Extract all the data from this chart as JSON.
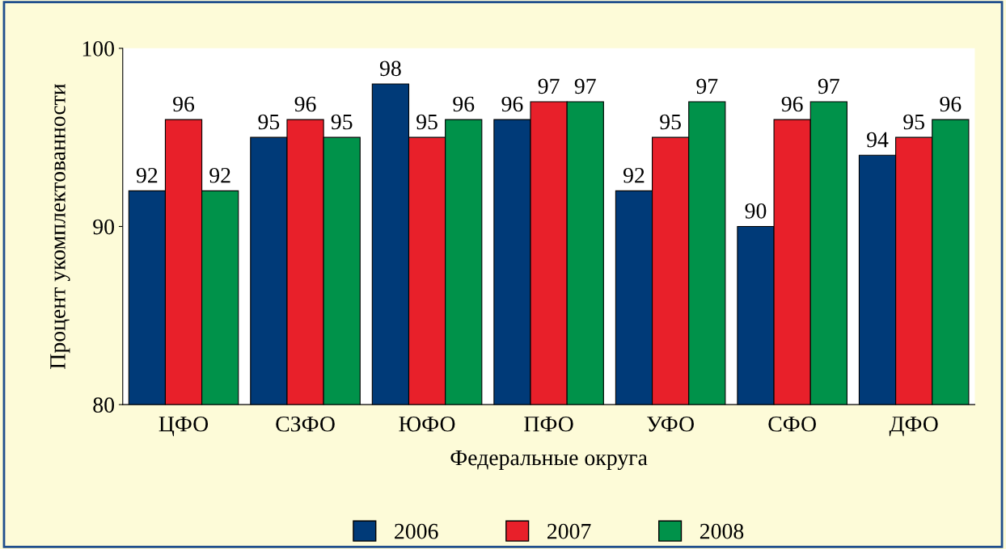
{
  "chart_data": {
    "type": "bar",
    "xlabel": "Федеральные округа",
    "ylabel": "Процент укомплектованности",
    "categories": [
      "ЦФО",
      "СЗФО",
      "ЮФО",
      "ПФО",
      "УФО",
      "СФО",
      "ДФО"
    ],
    "series": [
      {
        "name": "2006",
        "color": "#003a78",
        "values": [
          92,
          95,
          98,
          96,
          92,
          90,
          94
        ]
      },
      {
        "name": "2007",
        "color": "#e8202a",
        "values": [
          96,
          96,
          95,
          97,
          95,
          96,
          95
        ]
      },
      {
        "name": "2008",
        "color": "#00924a",
        "values": [
          92,
          95,
          96,
          97,
          97,
          97,
          96
        ]
      }
    ],
    "ylim": [
      80,
      100
    ],
    "yticks": [
      80,
      90,
      100
    ],
    "data_labels": true,
    "grid": false,
    "legend": "bottom"
  }
}
